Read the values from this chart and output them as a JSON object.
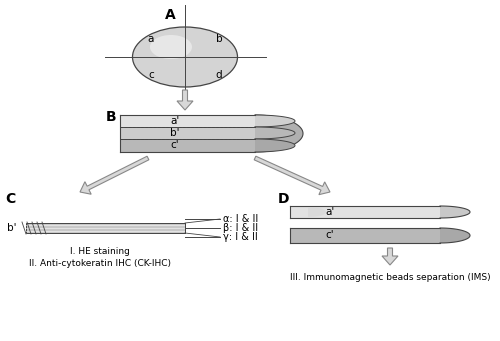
{
  "bg_color": "#ffffff",
  "label_A": "A",
  "label_B": "B",
  "label_C": "C",
  "label_D": "D",
  "quadrant_labels": [
    "a",
    "b",
    "c",
    "d"
  ],
  "section_labels_B": [
    "a'",
    "b'",
    "c'"
  ],
  "section_label_C_left": "b'",
  "section_labels_C_right": [
    "α: I & II",
    "β: I & II",
    "γ: I & II"
  ],
  "section_labels_D": [
    "a'",
    "c'"
  ],
  "text_C1": "I. HE staining",
  "text_C2": "II. Anti-cytokeratin IHC (CK-IHC)",
  "text_D": "III. Immunomagnetic beads separation (IMS)",
  "ellipse_fill": "#d4d4d4",
  "ellipse_highlight": "#ebebeb",
  "section_fill_a": "#e2e2e2",
  "section_fill_b": "#cccccc",
  "section_fill_c": "#b8b8b8",
  "curve_fill": "#c0c0c0",
  "strip_fill": "#c8c8c8",
  "line_color": "#444444",
  "arrow_face": "#d8d8d8",
  "arrow_edge": "#888888",
  "font_bold": 10,
  "font_label": 7.5,
  "font_text": 6.5
}
